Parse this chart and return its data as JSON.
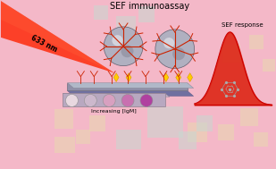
{
  "background_color": "#f4b8c8",
  "title": "SEF immunoassay",
  "title_fontsize": 7,
  "laser_label": "633 nm",
  "response_label": "SEF response",
  "xaxis_label": "Increasing [IgM]",
  "fig_width": 3.09,
  "fig_height": 1.89,
  "dpi": 100,
  "square_colors": [
    "#e8d8e0",
    "#ccb8cc",
    "#d8a0c0",
    "#c870b0",
    "#b040a0"
  ],
  "sphere_color": "#b0b0c0",
  "antibody_color": "#cc2200",
  "tag_color": "#ffcc00",
  "peak_fill_color": "#dd2211",
  "molecule_color": "#888888",
  "bg_squares": [
    [
      210,
      30,
      22,
      22,
      "#e8d8b0",
      0.55
    ],
    [
      245,
      32,
      18,
      18,
      "#e8d8b0",
      0.55
    ],
    [
      270,
      48,
      20,
      20,
      "#e8d8b0",
      0.55
    ],
    [
      285,
      25,
      16,
      16,
      "#e8d8b0",
      0.55
    ],
    [
      250,
      120,
      20,
      20,
      "#e8d8b0",
      0.55
    ],
    [
      280,
      135,
      16,
      16,
      "#e8d8b0",
      0.55
    ],
    [
      295,
      110,
      14,
      14,
      "#e8d8b0",
      0.55
    ],
    [
      60,
      45,
      22,
      22,
      "#e8d8b0",
      0.55
    ],
    [
      85,
      28,
      16,
      16,
      "#e8d8b0",
      0.55
    ],
    [
      100,
      42,
      18,
      18,
      "#e8d8b0",
      0.55
    ],
    [
      155,
      165,
      18,
      18,
      "#c8d8d0",
      0.55
    ],
    [
      130,
      150,
      22,
      22,
      "#c8d8d0",
      0.55
    ],
    [
      105,
      168,
      16,
      16,
      "#c8d8d0",
      0.55
    ],
    [
      165,
      35,
      40,
      35,
      "#c8d8d0",
      0.55
    ],
    [
      130,
      22,
      28,
      22,
      "#c8d8d0",
      0.55
    ],
    [
      60,
      18,
      24,
      18,
      "#e8d8b0",
      0.55
    ],
    [
      200,
      22,
      20,
      20,
      "#c8d8d0",
      0.55
    ],
    [
      220,
      42,
      18,
      18,
      "#c8d8d0",
      0.55
    ]
  ]
}
